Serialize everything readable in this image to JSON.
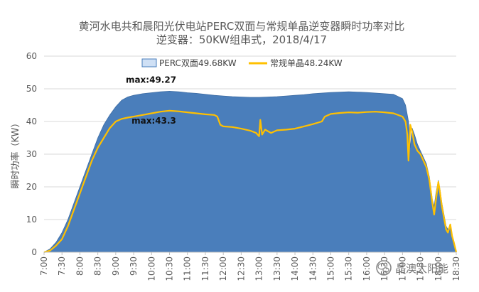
{
  "chart_data": {
    "type": "area",
    "title_line1": "黄河水电共和晨阳光伏电站PERC双面与常规单晶逆变器瞬时功率对比",
    "title_line2": "逆变器：50KW组串式，2018/4/17",
    "ylabel": "瞬时功率（KW）",
    "xlabel": "",
    "ylim": [
      0,
      60
    ],
    "yticks": [
      "0",
      "10",
      "20",
      "30",
      "40",
      "50",
      "60"
    ],
    "xlim": [
      "7:00",
      "18:30"
    ],
    "xticks": [
      "7:00",
      "7:30",
      "8:00",
      "8:30",
      "9:00",
      "9:30",
      "10:00",
      "10:30",
      "11:00",
      "11:30",
      "12:00",
      "12:30",
      "13:00",
      "13:30",
      "14:00",
      "14:30",
      "15:00",
      "15:30",
      "16:00",
      "16:30",
      "17:00",
      "17:30",
      "18:00",
      "18:30"
    ],
    "grid": true,
    "legend_position": "top-center",
    "series": [
      {
        "name": "PERC双面49.68KW",
        "type": "area",
        "color": "#4a7ebb",
        "points": [
          [
            "7:00",
            0
          ],
          [
            "7:10",
            1
          ],
          [
            "7:20",
            3
          ],
          [
            "7:30",
            6
          ],
          [
            "7:40",
            10
          ],
          [
            "7:50",
            15
          ],
          [
            "8:00",
            20
          ],
          [
            "8:10",
            25
          ],
          [
            "8:20",
            30
          ],
          [
            "8:30",
            35
          ],
          [
            "8:40",
            39
          ],
          [
            "8:50",
            42
          ],
          [
            "9:00",
            44.5
          ],
          [
            "9:10",
            46.5
          ],
          [
            "9:20",
            47.5
          ],
          [
            "9:30",
            48
          ],
          [
            "9:45",
            48.5
          ],
          [
            "10:00",
            48.8
          ],
          [
            "10:15",
            49.1
          ],
          [
            "10:30",
            49.27
          ],
          [
            "10:45",
            49.1
          ],
          [
            "11:00",
            48.8
          ],
          [
            "11:15",
            48.6
          ],
          [
            "11:30",
            48.3
          ],
          [
            "11:45",
            48
          ],
          [
            "12:00",
            47.8
          ],
          [
            "12:15",
            47.6
          ],
          [
            "12:30",
            47.5
          ],
          [
            "12:45",
            47.4
          ],
          [
            "13:00",
            47.4
          ],
          [
            "13:15",
            47.5
          ],
          [
            "13:30",
            47.6
          ],
          [
            "13:45",
            47.8
          ],
          [
            "14:00",
            48
          ],
          [
            "14:15",
            48.2
          ],
          [
            "14:30",
            48.5
          ],
          [
            "14:45",
            48.7
          ],
          [
            "15:00",
            48.9
          ],
          [
            "15:15",
            49
          ],
          [
            "15:30",
            49.1
          ],
          [
            "15:45",
            49
          ],
          [
            "16:00",
            48.9
          ],
          [
            "16:15",
            48.7
          ],
          [
            "16:30",
            48.5
          ],
          [
            "16:45",
            48.3
          ],
          [
            "17:00",
            47
          ],
          [
            "17:05",
            45
          ],
          [
            "17:10",
            40
          ],
          [
            "17:13",
            32
          ],
          [
            "17:16",
            38
          ],
          [
            "17:20",
            36
          ],
          [
            "17:25",
            33
          ],
          [
            "17:30",
            31
          ],
          [
            "17:35",
            29
          ],
          [
            "17:40",
            27
          ],
          [
            "17:45",
            23
          ],
          [
            "17:50",
            16
          ],
          [
            "17:53",
            14
          ],
          [
            "17:56",
            18
          ],
          [
            "18:00",
            22
          ],
          [
            "18:03",
            19
          ],
          [
            "18:06",
            15
          ],
          [
            "18:10",
            11
          ],
          [
            "18:13",
            8
          ],
          [
            "18:16",
            7
          ],
          [
            "18:20",
            8
          ],
          [
            "18:23",
            5
          ],
          [
            "18:26",
            3
          ],
          [
            "18:30",
            0.5
          ]
        ]
      },
      {
        "name": "常规单晶48.24KW",
        "type": "line",
        "color": "#ffc000",
        "points": [
          [
            "7:00",
            0
          ],
          [
            "7:10",
            0.5
          ],
          [
            "7:20",
            2
          ],
          [
            "7:30",
            4
          ],
          [
            "7:40",
            8
          ],
          [
            "7:50",
            13
          ],
          [
            "8:00",
            18
          ],
          [
            "8:10",
            23
          ],
          [
            "8:20",
            28
          ],
          [
            "8:30",
            32
          ],
          [
            "8:40",
            35
          ],
          [
            "8:50",
            38
          ],
          [
            "9:00",
            40
          ],
          [
            "9:10",
            40.8
          ],
          [
            "9:20",
            41.2
          ],
          [
            "9:30",
            41.5
          ],
          [
            "9:45",
            42
          ],
          [
            "10:00",
            42.5
          ],
          [
            "10:15",
            43
          ],
          [
            "10:30",
            43.3
          ],
          [
            "10:45",
            43.1
          ],
          [
            "11:00",
            42.8
          ],
          [
            "11:15",
            42.5
          ],
          [
            "11:30",
            42.2
          ],
          [
            "11:45",
            42
          ],
          [
            "11:50",
            41.5
          ],
          [
            "11:55",
            39
          ],
          [
            "12:00",
            38.5
          ],
          [
            "12:15",
            38.3
          ],
          [
            "12:30",
            37.8
          ],
          [
            "12:45",
            37.2
          ],
          [
            "12:55",
            36.5
          ],
          [
            "13:00",
            35.5
          ],
          [
            "13:02",
            40.5
          ],
          [
            "13:05",
            36
          ],
          [
            "13:10",
            37.5
          ],
          [
            "13:20",
            36.5
          ],
          [
            "13:30",
            37.3
          ],
          [
            "13:45",
            37.5
          ],
          [
            "14:00",
            37.8
          ],
          [
            "14:15",
            38.5
          ],
          [
            "14:30",
            39.2
          ],
          [
            "14:45",
            40
          ],
          [
            "14:50",
            41.5
          ],
          [
            "15:00",
            42.3
          ],
          [
            "15:15",
            42.6
          ],
          [
            "15:30",
            42.8
          ],
          [
            "15:45",
            42.7
          ],
          [
            "16:00",
            42.9
          ],
          [
            "16:15",
            43
          ],
          [
            "16:30",
            42.8
          ],
          [
            "16:45",
            42.5
          ],
          [
            "17:00",
            41.5
          ],
          [
            "17:05",
            40
          ],
          [
            "17:08",
            36
          ],
          [
            "17:10",
            28
          ],
          [
            "17:13",
            39
          ],
          [
            "17:16",
            37
          ],
          [
            "17:20",
            33
          ],
          [
            "17:25",
            31
          ],
          [
            "17:30",
            30
          ],
          [
            "17:35",
            28
          ],
          [
            "17:40",
            26
          ],
          [
            "17:45",
            22
          ],
          [
            "17:50",
            15
          ],
          [
            "17:53",
            11.5
          ],
          [
            "17:56",
            16
          ],
          [
            "18:00",
            21.5
          ],
          [
            "18:03",
            18
          ],
          [
            "18:06",
            14
          ],
          [
            "18:10",
            10
          ],
          [
            "18:13",
            7
          ],
          [
            "18:16",
            6
          ],
          [
            "18:20",
            8.5
          ],
          [
            "18:23",
            5
          ],
          [
            "18:26",
            3
          ],
          [
            "18:30",
            0
          ]
        ]
      }
    ],
    "annotations": [
      {
        "text": "max:49.27",
        "at": [
          "10:30",
          49.27
        ]
      },
      {
        "text": "max:43.3",
        "at": [
          "10:30",
          43.3
        ]
      }
    ]
  },
  "watermark": {
    "icon": "wechat-icon",
    "text": "晶澳太阳能"
  }
}
